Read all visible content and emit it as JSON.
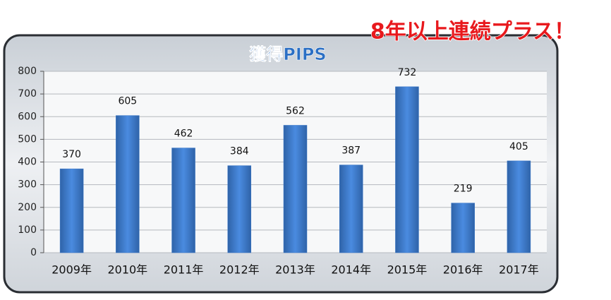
{
  "chart_data": {
    "type": "bar",
    "title": "獲得PIPS",
    "annotation": "8年以上連続プラス！",
    "categories": [
      "2009年",
      "2010年",
      "2011年",
      "2012年",
      "2013年",
      "2014年",
      "2015年",
      "2016年",
      "2017年"
    ],
    "values": [
      370,
      605,
      462,
      384,
      562,
      387,
      732,
      219,
      405
    ],
    "color": "#3a78c9",
    "ylim": [
      0,
      800
    ],
    "yticks": [
      0,
      100,
      200,
      300,
      400,
      500,
      600,
      700,
      800
    ],
    "grid": true
  }
}
